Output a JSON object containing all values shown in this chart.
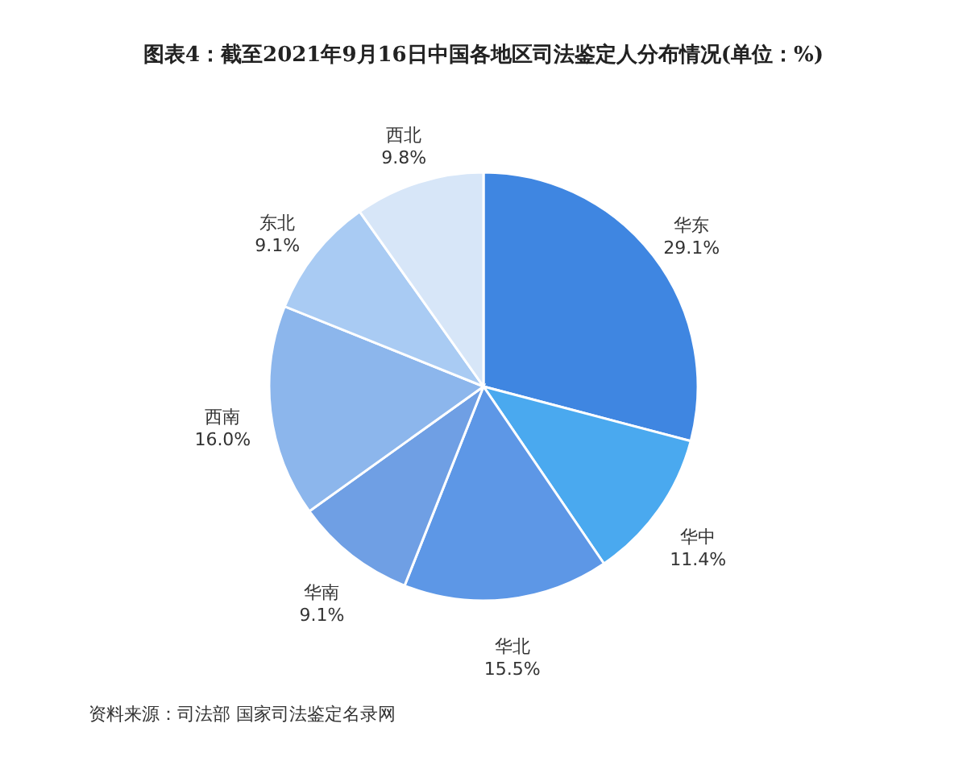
{
  "chart_data": {
    "type": "pie",
    "title": "图表4：截至2021年9月16日中国各地区司法鉴定人分布情况(单位：%)",
    "categories": [
      "华东",
      "华中",
      "华北",
      "华南",
      "西南",
      "东北",
      "西北"
    ],
    "values": [
      29.1,
      11.4,
      15.5,
      9.1,
      16.0,
      9.1,
      9.8
    ],
    "value_labels": [
      "29.1%",
      "11.4%",
      "15.5%",
      "9.1%",
      "16.0%",
      "9.1%",
      "9.8%"
    ],
    "colors": [
      "#3f86e1",
      "#4aa9ef",
      "#5d97e6",
      "#6f9fe4",
      "#8cb6ec",
      "#a9cbf3",
      "#d7e6f8"
    ],
    "legend": false,
    "annotations": [
      "资料来源：司法部 国家司法鉴定名录网"
    ]
  }
}
